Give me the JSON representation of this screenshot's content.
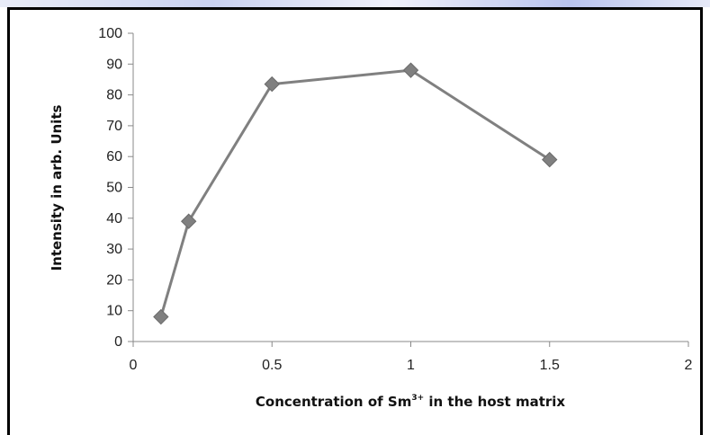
{
  "chart_data": {
    "type": "line",
    "xlabel_main": "Concentration of Sm",
    "xlabel_sup": "3+",
    "xlabel_tail": " in the host matrix",
    "ylabel": "Intensity in arb. Units",
    "x": [
      0.1,
      0.2,
      0.5,
      1.0,
      1.5
    ],
    "values": [
      8,
      39,
      83.5,
      88,
      59
    ],
    "xlim": [
      0,
      2
    ],
    "ylim": [
      0,
      100
    ],
    "xticks": [
      0,
      0.5,
      1,
      1.5,
      2
    ],
    "xtick_labels": [
      "0",
      "0.5",
      "1",
      "1.5",
      "2"
    ],
    "yticks": [
      0,
      10,
      20,
      30,
      40,
      50,
      60,
      70,
      80,
      90,
      100
    ],
    "ytick_labels": [
      "0",
      "10",
      "20",
      "30",
      "40",
      "50",
      "60",
      "70",
      "80",
      "90",
      "100"
    ],
    "grid": false,
    "legend": false,
    "line_color": "#808080",
    "marker_color": "#808080",
    "marker": "diamond"
  }
}
